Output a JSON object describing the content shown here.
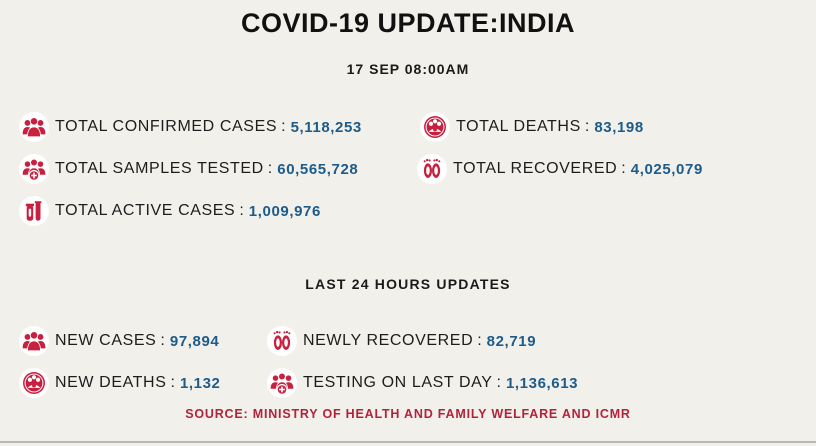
{
  "header": {
    "title": "COVID-19 UPDATE:INDIA",
    "date": "17 SEP 08:00AM"
  },
  "totals": [
    {
      "label": "TOTAL CONFIRMED CASES",
      "value": "5,118,253",
      "icon": "people-group-icon"
    },
    {
      "label": "TOTAL DEATHS",
      "value": "83,198",
      "icon": "virus-icon"
    },
    {
      "label": "TOTAL SAMPLES TESTED",
      "value": "60,565,728",
      "icon": "people-plus-icon"
    },
    {
      "label": "TOTAL RECOVERED",
      "value": "4,025,079",
      "icon": "footprints-icon"
    },
    {
      "label": "TOTAL ACTIVE CASES",
      "value": "1,009,976",
      "icon": "test-tube-icon"
    }
  ],
  "last24": {
    "heading": "LAST 24 HOURS UPDATES",
    "items": [
      {
        "label": "NEW CASES",
        "value": "97,894",
        "icon": "people-group-icon"
      },
      {
        "label": "NEWLY RECOVERED",
        "value": "82,719",
        "icon": "footprints-icon"
      },
      {
        "label": "NEW DEATHS",
        "value": "1,132",
        "icon": "virus-icon"
      },
      {
        "label": "TESTING ON LAST DAY",
        "value": "1,136,613",
        "icon": "people-plus-icon"
      }
    ]
  },
  "source": "SOURCE: MINISTRY OF HEALTH AND FAMILY WELFARE AND ICMR",
  "colors": {
    "background": "#f2f0ea",
    "value": "#1d5b8a",
    "icon": "#c8203f",
    "source": "#b3223b"
  }
}
